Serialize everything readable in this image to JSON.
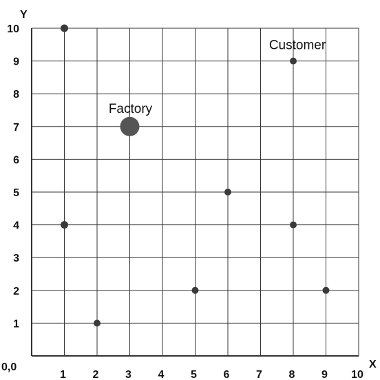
{
  "chart_data": {
    "type": "scatter",
    "xlabel": "X",
    "ylabel": "Y",
    "origin_label": "0,0",
    "xlim": [
      0,
      10
    ],
    "ylim": [
      0,
      10
    ],
    "grid": true,
    "x_ticks": [
      "1",
      "2",
      "3",
      "4",
      "5",
      "6",
      "7",
      "8",
      "9",
      "10"
    ],
    "y_ticks": [
      "1",
      "2",
      "3",
      "4",
      "5",
      "6",
      "7",
      "8",
      "9",
      "10"
    ],
    "colors": {
      "point": "#3a3a3a",
      "factory": "#555555",
      "grid": "#333333"
    },
    "points": [
      {
        "x": 1,
        "y": 10
      },
      {
        "x": 8,
        "y": 9
      },
      {
        "x": 6,
        "y": 5
      },
      {
        "x": 1,
        "y": 4
      },
      {
        "x": 8,
        "y": 4
      },
      {
        "x": 5,
        "y": 2
      },
      {
        "x": 9,
        "y": 2
      },
      {
        "x": 2,
        "y": 1
      }
    ],
    "factory": {
      "x": 3,
      "y": 7,
      "label": "Factory"
    },
    "customer": {
      "x": 8,
      "y": 9,
      "label": "Customer"
    }
  }
}
